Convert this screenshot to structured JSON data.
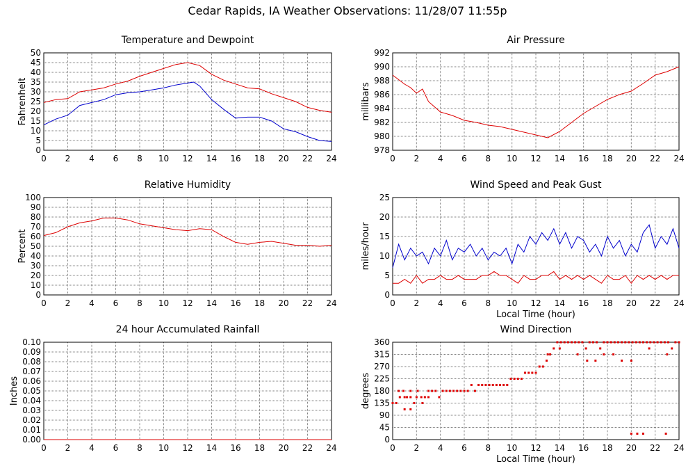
{
  "page_title": "Cedar Rapids, IA Weather Observations: 11/28/07 11:55p",
  "colors": {
    "red": "#dd0000",
    "blue": "#0000cc",
    "grid": "#7f7f7f",
    "frame": "#000000"
  },
  "chart_data": [
    {
      "id": "temperature",
      "type": "line",
      "title": "Temperature and Dewpoint",
      "xlabel": "",
      "ylabel": "Fahrenheit",
      "xlim": [
        0,
        24
      ],
      "ylim": [
        0,
        50
      ],
      "xticks": [
        "0",
        "2",
        "4",
        "6",
        "8",
        "10",
        "12",
        "14",
        "16",
        "18",
        "20",
        "22",
        "24"
      ],
      "yticks": [
        "0",
        "5",
        "10",
        "15",
        "20",
        "25",
        "30",
        "35",
        "40",
        "45",
        "50"
      ],
      "grid": true,
      "series": [
        {
          "color": "#dd0000",
          "x": [
            0,
            1,
            2,
            3,
            4,
            5,
            6,
            7,
            8,
            9,
            10,
            11,
            12,
            13,
            14,
            15,
            16,
            17,
            18,
            19,
            20,
            21,
            22,
            23,
            24
          ],
          "values": [
            24.5,
            26,
            26.5,
            30,
            31,
            32,
            34,
            35.5,
            38,
            40,
            42,
            44,
            45,
            43.5,
            39,
            36,
            34,
            32,
            31.5,
            29,
            27,
            25,
            22,
            20.5,
            19.5
          ]
        },
        {
          "color": "#0000cc",
          "x": [
            0,
            1,
            2,
            3,
            4,
            5,
            6,
            7,
            8,
            9,
            10,
            11,
            12,
            12.5,
            13,
            14,
            15,
            16,
            17,
            18,
            19,
            20,
            21,
            22,
            23,
            24
          ],
          "values": [
            13,
            16,
            18,
            23,
            24.5,
            26,
            28.5,
            29.5,
            30,
            31,
            32,
            33.5,
            34.5,
            35,
            33,
            26,
            21,
            16.5,
            17,
            17,
            15,
            11,
            9.5,
            7,
            5,
            4.5
          ]
        }
      ]
    },
    {
      "id": "pressure",
      "type": "line",
      "title": "Air Pressure",
      "xlabel": "",
      "ylabel": "millibars",
      "xlim": [
        0,
        24
      ],
      "ylim": [
        978,
        992
      ],
      "xticks": [
        "0",
        "2",
        "4",
        "6",
        "8",
        "10",
        "12",
        "14",
        "16",
        "18",
        "20",
        "22",
        "24"
      ],
      "yticks": [
        "978",
        "980",
        "982",
        "984",
        "986",
        "988",
        "990",
        "992"
      ],
      "grid": true,
      "series": [
        {
          "color": "#dd0000",
          "x": [
            0,
            1,
            1.5,
            2,
            2.5,
            3,
            4,
            5,
            6,
            7,
            8,
            9,
            10,
            11,
            12,
            13,
            14,
            15,
            16,
            17,
            18,
            19,
            20,
            21,
            22,
            23,
            24
          ],
          "values": [
            988.8,
            987.5,
            987,
            986.2,
            986.8,
            985,
            983.5,
            983,
            982.3,
            982,
            981.6,
            981.4,
            981,
            980.6,
            980.2,
            979.8,
            980.7,
            982,
            983.3,
            984.3,
            985.3,
            986,
            986.5,
            987.6,
            988.8,
            989.3,
            990
          ]
        }
      ]
    },
    {
      "id": "humidity",
      "type": "line",
      "title": "Relative Humidity",
      "xlabel": "",
      "ylabel": "Percent",
      "xlim": [
        0,
        24
      ],
      "ylim": [
        0,
        100
      ],
      "xticks": [
        "0",
        "2",
        "4",
        "6",
        "8",
        "10",
        "12",
        "14",
        "16",
        "18",
        "20",
        "22",
        "24"
      ],
      "yticks": [
        "0",
        "10",
        "20",
        "30",
        "40",
        "50",
        "60",
        "70",
        "80",
        "90",
        "100"
      ],
      "grid": true,
      "series": [
        {
          "color": "#dd0000",
          "x": [
            0,
            1,
            2,
            3,
            4,
            5,
            6,
            7,
            8,
            9,
            10,
            11,
            12,
            13,
            14,
            15,
            16,
            17,
            18,
            19,
            20,
            21,
            22,
            23,
            24
          ],
          "values": [
            61,
            64,
            70,
            74,
            76,
            79,
            79,
            77,
            73,
            71,
            69,
            67,
            66,
            68,
            67,
            60,
            54,
            52,
            54,
            55,
            53,
            51,
            51,
            50,
            51
          ]
        }
      ]
    },
    {
      "id": "wind_speed",
      "type": "line",
      "title": "Wind Speed and Peak Gust",
      "xlabel": "Local Time (hour)",
      "ylabel": "miles/hour",
      "xlim": [
        0,
        24
      ],
      "ylim": [
        0,
        25
      ],
      "xticks": [
        "0",
        "2",
        "4",
        "6",
        "8",
        "10",
        "12",
        "14",
        "16",
        "18",
        "20",
        "22",
        "24"
      ],
      "yticks": [
        "0",
        "5",
        "10",
        "15",
        "20",
        "25"
      ],
      "grid": true,
      "series": [
        {
          "color": "#0000cc",
          "x": [
            0,
            0.5,
            1,
            1.5,
            2,
            2.5,
            3,
            3.5,
            4,
            4.5,
            5,
            5.5,
            6,
            6.5,
            7,
            7.5,
            8,
            8.5,
            9,
            9.5,
            10,
            10.5,
            11,
            11.5,
            12,
            12.5,
            13,
            13.5,
            14,
            14.5,
            15,
            15.5,
            16,
            16.5,
            17,
            17.5,
            18,
            18.5,
            19,
            19.5,
            20,
            20.5,
            21,
            21.5,
            22,
            22.5,
            23,
            23.5,
            24
          ],
          "values": [
            7,
            13,
            9,
            12,
            10,
            11,
            8,
            12,
            10,
            14,
            9,
            12,
            11,
            13,
            10,
            12,
            9,
            11,
            10,
            12,
            8,
            13,
            11,
            15,
            13,
            16,
            14,
            17,
            13,
            16,
            12,
            15,
            14,
            11,
            13,
            10,
            15,
            12,
            14,
            10,
            13,
            11,
            16,
            18,
            12,
            15,
            13,
            17,
            12
          ]
        },
        {
          "color": "#dd0000",
          "x": [
            0,
            0.5,
            1,
            1.5,
            2,
            2.5,
            3,
            3.5,
            4,
            4.5,
            5,
            5.5,
            6,
            6.5,
            7,
            7.5,
            8,
            8.5,
            9,
            9.5,
            10,
            10.5,
            11,
            11.5,
            12,
            12.5,
            13,
            13.5,
            14,
            14.5,
            15,
            15.5,
            16,
            16.5,
            17,
            17.5,
            18,
            18.5,
            19,
            19.5,
            20,
            20.5,
            21,
            21.5,
            22,
            22.5,
            23,
            23.5,
            24
          ],
          "values": [
            3,
            3,
            4,
            3,
            5,
            3,
            4,
            4,
            5,
            4,
            4,
            5,
            4,
            4,
            4,
            5,
            5,
            6,
            5,
            5,
            4,
            3,
            5,
            4,
            4,
            5,
            5,
            6,
            4,
            5,
            4,
            5,
            4,
            5,
            4,
            3,
            5,
            4,
            4,
            5,
            3,
            5,
            4,
            5,
            4,
            5,
            4,
            5,
            5
          ]
        }
      ]
    },
    {
      "id": "rainfall",
      "type": "line",
      "title": "24 hour Accumulated Rainfall",
      "xlabel": "",
      "ylabel": "Inches",
      "xlim": [
        0,
        24
      ],
      "ylim": [
        0,
        0.1
      ],
      "xticks": [
        "0",
        "2",
        "4",
        "6",
        "8",
        "10",
        "12",
        "14",
        "16",
        "18",
        "20",
        "22",
        "24"
      ],
      "yticks": [
        "0.00",
        "0.01",
        "0.02",
        "0.03",
        "0.04",
        "0.05",
        "0.06",
        "0.07",
        "0.08",
        "0.09",
        "0.10"
      ],
      "grid": true,
      "series": [
        {
          "color": "#dd0000",
          "x": [
            0,
            24
          ],
          "values": [
            0,
            0
          ]
        }
      ]
    },
    {
      "id": "wind_direction",
      "type": "scatter",
      "title": "Wind Direction",
      "xlabel": "Local Time (hour)",
      "ylabel": "degrees",
      "xlim": [
        0,
        24
      ],
      "ylim": [
        0,
        360
      ],
      "xticks": [
        "0",
        "2",
        "4",
        "6",
        "8",
        "10",
        "12",
        "14",
        "16",
        "18",
        "20",
        "22",
        "24"
      ],
      "yticks": [
        "0",
        "45",
        "90",
        "135",
        "180",
        "225",
        "270",
        "315",
        "360"
      ],
      "grid": true,
      "series": [
        {
          "color": "#dd0000",
          "x": [
            0,
            0.3,
            0.6,
            0.9,
            1.2,
            1.5,
            1.8,
            2.1,
            2.4,
            2.7,
            3.0,
            3.3,
            3.6,
            3.9,
            4.2,
            4.5,
            4.8,
            5.1,
            5.4,
            5.7,
            6.0,
            6.3,
            6.6,
            6.9,
            7.2,
            7.5,
            7.8,
            8.1,
            8.4,
            8.7,
            9.0,
            9.3,
            9.6,
            9.9,
            10.2,
            10.5,
            10.8,
            11.1,
            11.4,
            11.7,
            12.0,
            12.3,
            12.6,
            12.9,
            13.2,
            13.5,
            13.8,
            14.1,
            14.4,
            14.7,
            15.0,
            15.3,
            15.6,
            15.9,
            16.2,
            16.5,
            16.8,
            17.1,
            17.4,
            17.7,
            18.0,
            18.3,
            18.6,
            18.9,
            19.2,
            19.5,
            19.8,
            20.1,
            20.4,
            20.7,
            21.0,
            21.3,
            21.6,
            21.9,
            22.2,
            22.5,
            22.8,
            23.1,
            23.4,
            23.7,
            24,
            0.5,
            1.0,
            1.5,
            2.0,
            2.5,
            3.0,
            1.0,
            1.5,
            13.0,
            14.0,
            15.5,
            17.0,
            18.5,
            20.0,
            21.5,
            23.0,
            20.0,
            20.5,
            21.0,
            22.9,
            16.3,
            17.7,
            19.2
          ],
          "values": [
            135,
            135,
            157,
            180,
            157,
            157,
            135,
            180,
            157,
            157,
            180,
            180,
            180,
            157,
            180,
            180,
            180,
            180,
            180,
            180,
            180,
            180,
            202,
            180,
            202,
            202,
            202,
            202,
            202,
            202,
            202,
            202,
            202,
            225,
            225,
            225,
            225,
            247,
            247,
            247,
            247,
            270,
            270,
            292,
            315,
            337,
            360,
            360,
            360,
            360,
            360,
            360,
            360,
            360,
            337,
            360,
            360,
            360,
            337,
            360,
            360,
            360,
            360,
            360,
            360,
            360,
            360,
            360,
            360,
            360,
            360,
            360,
            360,
            360,
            360,
            360,
            360,
            360,
            337,
            360,
            360,
            180,
            157,
            180,
            157,
            135,
            157,
            112,
            112,
            315,
            337,
            315,
            292,
            315,
            292,
            337,
            315,
            22,
            22,
            22,
            22,
            292,
            315,
            292
          ]
        }
      ]
    }
  ]
}
